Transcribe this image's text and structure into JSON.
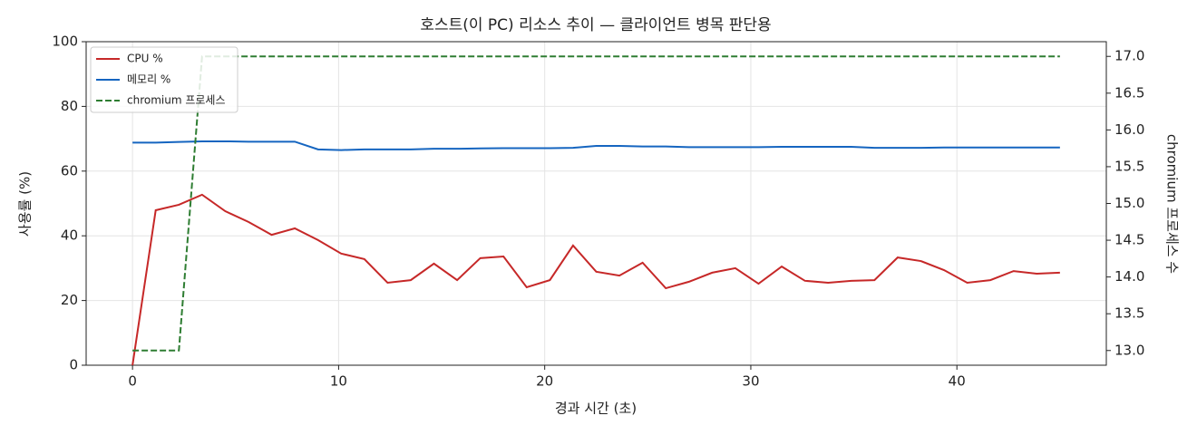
{
  "chart_data": {
    "type": "line",
    "title": "호스트(이 PC) 리소스 추이 — 클라이언트 병목 판단용",
    "xlabel": "경과 시간 (초)",
    "ylabel": "사용률 (%)",
    "y2label": "chromium 프로세스 수",
    "x": [
      0,
      1.125,
      2.25,
      3.375,
      4.5,
      5.625,
      6.75,
      7.875,
      9,
      10.125,
      11.25,
      12.375,
      13.5,
      14.625,
      15.75,
      16.875,
      18,
      19.125,
      20.25,
      21.375,
      22.5,
      23.625,
      24.75,
      25.875,
      27,
      28.125,
      29.25,
      30.375,
      31.5,
      32.625,
      33.75,
      34.875,
      36,
      37.125,
      38.25,
      39.375,
      40.5,
      41.625,
      42.75,
      43.875,
      45
    ],
    "series": [
      {
        "name": "CPU %",
        "color": "#c62828",
        "linestyle": "solid",
        "values": [
          0,
          47.9,
          49.6,
          52.7,
          47.6,
          44.3,
          40.3,
          42.3,
          38.7,
          34.5,
          32.8,
          25.5,
          26.3,
          31.4,
          26.3,
          33.1,
          33.6,
          24.1,
          26.3,
          37.0,
          28.9,
          27.7,
          31.7,
          23.8,
          25.8,
          28.6,
          30.0,
          25.2,
          30.5,
          26.1,
          25.5,
          26.1,
          26.3,
          33.3,
          32.2,
          29.4,
          25.5,
          26.3,
          29.1,
          28.3,
          28.6
        ]
      },
      {
        "name": "메모리 %",
        "color": "#1565c0",
        "linestyle": "solid",
        "values": [
          68.8,
          68.8,
          69.0,
          69.2,
          69.2,
          69.1,
          69.1,
          69.1,
          66.7,
          66.5,
          66.7,
          66.7,
          66.7,
          66.9,
          66.9,
          67.0,
          67.1,
          67.1,
          67.1,
          67.2,
          67.8,
          67.8,
          67.6,
          67.6,
          67.4,
          67.4,
          67.4,
          67.4,
          67.5,
          67.5,
          67.5,
          67.5,
          67.2,
          67.2,
          67.2,
          67.3,
          67.3,
          67.3,
          67.3,
          67.3,
          67.3
        ]
      },
      {
        "name": "chromium 프로세스",
        "color": "#2e7d32",
        "linestyle": "dashed",
        "axis": "y2",
        "values": [
          13,
          13,
          13,
          17,
          17,
          17,
          17,
          17,
          17,
          17,
          17,
          17,
          17,
          17,
          17,
          17,
          17,
          17,
          17,
          17,
          17,
          17,
          17,
          17,
          17,
          17,
          17,
          17,
          17,
          17,
          17,
          17,
          17,
          17,
          17,
          17,
          17,
          17,
          17,
          17,
          17
        ]
      }
    ],
    "xlim": [
      -2.25,
      47.25
    ],
    "xticks": [
      0,
      10,
      20,
      30,
      40
    ],
    "ylim": [
      0,
      100
    ],
    "yticks": [
      0,
      20,
      40,
      60,
      80,
      100
    ],
    "y2lim": [
      12.8,
      17.2
    ],
    "y2ticks": [
      {
        "value": 13,
        "label": "13.0"
      },
      {
        "value": 13.5,
        "label": "13.5"
      },
      {
        "value": 14,
        "label": "14.0"
      },
      {
        "value": 14.5,
        "label": "14.5"
      },
      {
        "value": 15,
        "label": "15.0"
      },
      {
        "value": 15.5,
        "label": "15.5"
      },
      {
        "value": 16,
        "label": "16.0"
      },
      {
        "value": 16.5,
        "label": "16.5"
      },
      {
        "value": 17,
        "label": "17.0"
      }
    ],
    "grid": true,
    "legend": "upper-left"
  }
}
